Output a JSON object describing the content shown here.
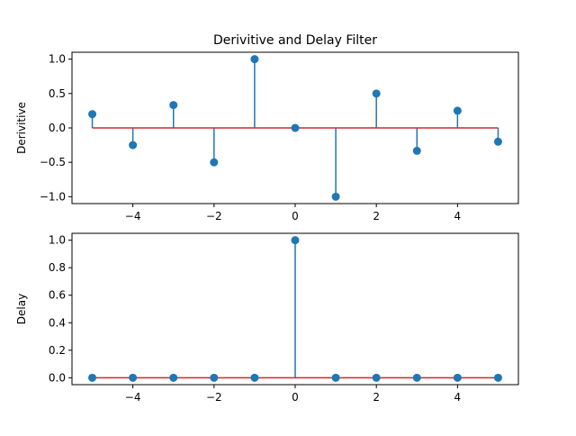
{
  "chart_data": [
    {
      "type": "stem",
      "title": "Derivitive and Delay Filter",
      "xlabel": "",
      "ylabel": "Derivitive",
      "xlim": [
        -5.5,
        5.5
      ],
      "ylim": [
        -1.1,
        1.1
      ],
      "xticks": [
        -4,
        -2,
        0,
        2,
        4
      ],
      "xtick_labels": [
        "−4",
        "−2",
        "0",
        "2",
        "4"
      ],
      "yticks": [
        -1.0,
        -0.5,
        0.0,
        0.5,
        1.0
      ],
      "ytick_labels": [
        "−1.0",
        "−0.5",
        "0.0",
        "0.5",
        "1.0"
      ],
      "x": [
        -5,
        -4,
        -3,
        -2,
        -1,
        0,
        1,
        2,
        3,
        4,
        5
      ],
      "y": [
        0.2,
        -0.25,
        0.333,
        -0.5,
        1.0,
        0.0,
        -1.0,
        0.5,
        -0.333,
        0.25,
        -0.2
      ],
      "grid": false,
      "colors": {
        "stem": "#1f77b4",
        "marker": "#1f77b4",
        "baseline": "#d62728"
      }
    },
    {
      "type": "stem",
      "title": "",
      "xlabel": "",
      "ylabel": "Delay",
      "xlim": [
        -5.5,
        5.5
      ],
      "ylim": [
        -0.05,
        1.05
      ],
      "xticks": [
        -4,
        -2,
        0,
        2,
        4
      ],
      "xtick_labels": [
        "−4",
        "−2",
        "0",
        "2",
        "4"
      ],
      "yticks": [
        0.0,
        0.2,
        0.4,
        0.6,
        0.8,
        1.0
      ],
      "ytick_labels": [
        "0.0",
        "0.2",
        "0.4",
        "0.6",
        "0.8",
        "1.0"
      ],
      "x": [
        -5,
        -4,
        -3,
        -2,
        -1,
        0,
        1,
        2,
        3,
        4,
        5
      ],
      "y": [
        0,
        0,
        0,
        0,
        0,
        1,
        0,
        0,
        0,
        0,
        0
      ],
      "grid": false,
      "colors": {
        "stem": "#1f77b4",
        "marker": "#1f77b4",
        "baseline": "#d62728"
      }
    }
  ]
}
